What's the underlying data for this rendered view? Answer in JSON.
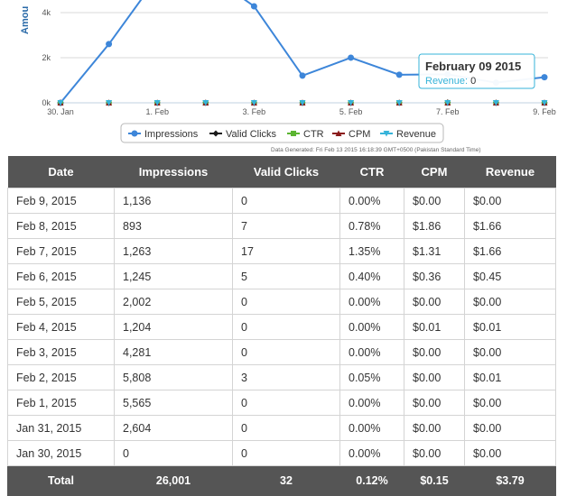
{
  "chart_data": {
    "type": "line",
    "ylabel": "Amou",
    "y_ticks": [
      "0k",
      "2k",
      "4k"
    ],
    "ylim": [
      0,
      6200
    ],
    "x_ticks": [
      "30. Jan",
      "1. Feb",
      "3. Feb",
      "5. Feb",
      "7. Feb",
      "9. Feb"
    ],
    "categories": [
      "Jan 30",
      "Jan 31",
      "Feb 1",
      "Feb 2",
      "Feb 3",
      "Feb 4",
      "Feb 5",
      "Feb 6",
      "Feb 7",
      "Feb 8",
      "Feb 9"
    ],
    "series": [
      {
        "name": "Impressions",
        "color": "#3d86d9",
        "values": [
          0,
          2604,
          5565,
          5808,
          4281,
          1204,
          2002,
          1245,
          1263,
          893,
          1136
        ]
      },
      {
        "name": "Valid Clicks",
        "color": "#1a1a1a",
        "values": [
          0,
          0,
          0,
          3,
          0,
          0,
          0,
          5,
          17,
          7,
          0
        ]
      },
      {
        "name": "CTR",
        "color": "#5bb531",
        "values": [
          0,
          0,
          0,
          0.05,
          0,
          0,
          0,
          0.4,
          1.35,
          0.78,
          0
        ]
      },
      {
        "name": "CPM",
        "color": "#8a1a1a",
        "values": [
          0,
          0,
          0,
          0,
          0,
          0.01,
          0,
          0.36,
          1.31,
          1.86,
          0
        ]
      },
      {
        "name": "Revenue",
        "color": "#36b3d9",
        "values": [
          0,
          0,
          0,
          0.01,
          0,
          0.01,
          0,
          0.45,
          1.66,
          1.66,
          0
        ]
      }
    ],
    "legend_position": "bottom",
    "grid": true,
    "tooltip": {
      "title": "February 09 2015",
      "series": "Revenue",
      "value": "0"
    },
    "generated_note": "Data Generated: Fri Feb 13 2015 16:18:39 GMT+0500 (Pakistan Standard Time)"
  },
  "table": {
    "headers": [
      "Date",
      "Impressions",
      "Valid Clicks",
      "CTR",
      "CPM",
      "Revenue"
    ],
    "rows": [
      [
        "Feb 9, 2015",
        "1,136",
        "0",
        "0.00%",
        "$0.00",
        "$0.00"
      ],
      [
        "Feb 8, 2015",
        "893",
        "7",
        "0.78%",
        "$1.86",
        "$1.66"
      ],
      [
        "Feb 7, 2015",
        "1,263",
        "17",
        "1.35%",
        "$1.31",
        "$1.66"
      ],
      [
        "Feb 6, 2015",
        "1,245",
        "5",
        "0.40%",
        "$0.36",
        "$0.45"
      ],
      [
        "Feb 5, 2015",
        "2,002",
        "0",
        "0.00%",
        "$0.00",
        "$0.00"
      ],
      [
        "Feb 4, 2015",
        "1,204",
        "0",
        "0.00%",
        "$0.01",
        "$0.01"
      ],
      [
        "Feb 3, 2015",
        "4,281",
        "0",
        "0.00%",
        "$0.00",
        "$0.00"
      ],
      [
        "Feb 2, 2015",
        "5,808",
        "3",
        "0.05%",
        "$0.00",
        "$0.01"
      ],
      [
        "Feb 1, 2015",
        "5,565",
        "0",
        "0.00%",
        "$0.00",
        "$0.00"
      ],
      [
        "Jan 31, 2015",
        "2,604",
        "0",
        "0.00%",
        "$0.00",
        "$0.00"
      ],
      [
        "Jan 30, 2015",
        "0",
        "0",
        "0.00%",
        "$0.00",
        "$0.00"
      ]
    ],
    "total": [
      "Total",
      "26,001",
      "32",
      "0.12%",
      "$0.15",
      "$3.79"
    ]
  }
}
